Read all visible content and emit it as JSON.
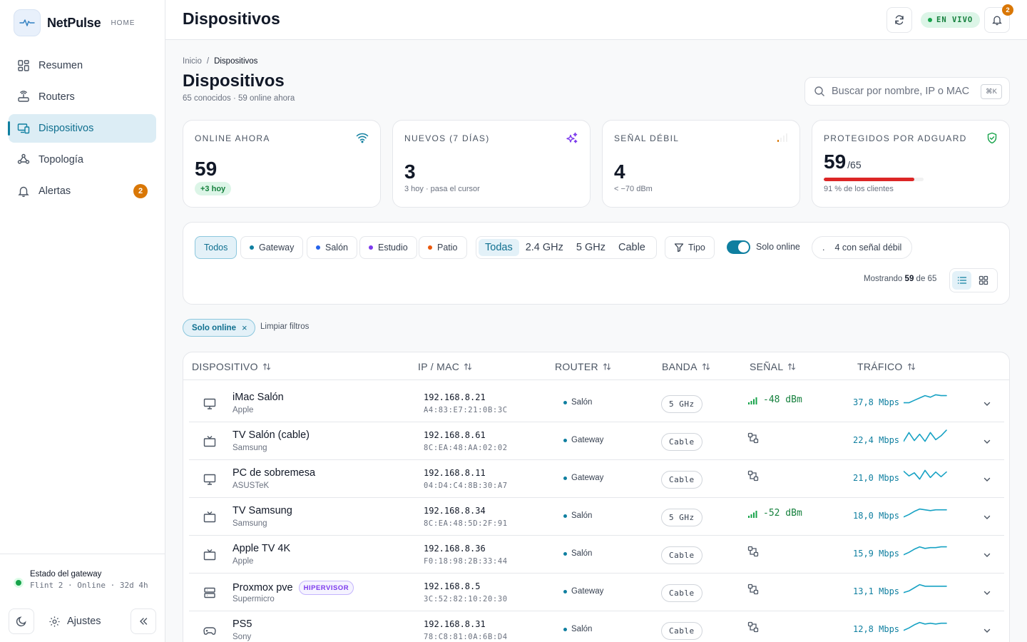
{
  "app": {
    "name": "NetPulse",
    "tag": "HOME"
  },
  "nav": [
    {
      "label": "Resumen",
      "icon": "dashboard-icon"
    },
    {
      "label": "Routers",
      "icon": "router-icon"
    },
    {
      "label": "Dispositivos",
      "icon": "devices-icon",
      "active": true
    },
    {
      "label": "Topología",
      "icon": "topology-icon"
    },
    {
      "label": "Alertas",
      "icon": "bell-icon",
      "badge": "2"
    }
  ],
  "gateway": {
    "title": "Estado del gateway",
    "subtitle": "Flint 2 · Online · 32d 4h"
  },
  "footer": {
    "settings_label": "Ajustes"
  },
  "topbar": {
    "title": "Dispositivos",
    "live_label": "EN VIVO",
    "notif_count": "2"
  },
  "breadcrumb": {
    "home": "Inicio",
    "sep": "/",
    "current": "Dispositivos"
  },
  "page": {
    "title": "Dispositivos",
    "subtitle": "65 conocidos · 59 online ahora"
  },
  "search": {
    "placeholder": "Buscar por nombre, IP o MAC",
    "shortcut": "⌘K"
  },
  "stats": [
    {
      "label": "ONLINE AHORA",
      "value": "59",
      "badge": "+3 hoy",
      "icon": "wifi-icon",
      "color": "#0f7fa0"
    },
    {
      "label": "NUEVOS (7 DÍAS)",
      "value": "3",
      "note": "3 hoy · pasa el cursor",
      "icon": "sparkle-icon",
      "color": "#7c3aed"
    },
    {
      "label": "SEÑAL DÉBIL",
      "value": "4",
      "note": "< −70 dBm",
      "icon": "weak-signal-icon",
      "color": "#d97706"
    },
    {
      "label": "PROTEGIDOS POR ADGUARD",
      "value": "59",
      "value_suffix": "/65",
      "note": "91 % de los clientes",
      "progress": 0.91,
      "icon": "shield-check-icon",
      "color": "#16a34a"
    }
  ],
  "filters": {
    "routers": [
      {
        "label": "Todos",
        "selected": true
      },
      {
        "label": "Gateway",
        "dot": "#0f7fa0"
      },
      {
        "label": "Salón",
        "dot": "#2563eb"
      },
      {
        "label": "Estudio",
        "dot": "#7c3aed"
      },
      {
        "label": "Patio",
        "dot": "#ea580c"
      }
    ],
    "bands": [
      {
        "label": "Todas",
        "selected": true
      },
      {
        "label": "2.4 GHz"
      },
      {
        "label": "5 GHz"
      },
      {
        "label": "Cable"
      }
    ],
    "type_label": "Tipo",
    "online_only_label": "Solo online",
    "online_only": true,
    "weak_label": "4 con señal débil",
    "weak_prefix": ".",
    "showing_prefix": "Mostrando",
    "showing_count": "59",
    "showing_mid": "de",
    "showing_total": "65"
  },
  "active_filters": {
    "chip": "Solo online",
    "clear": "Limpiar filtros"
  },
  "table": {
    "columns": [
      "DISPOSITIVO",
      "IP / MAC",
      "ROUTER",
      "BANDA",
      "SEÑAL",
      "TRÁFICO"
    ],
    "rows": [
      {
        "name": "iMac Salón",
        "vendor": "Apple",
        "kind": "desktop",
        "ip": "192.168.8.21",
        "mac": "A4:83:E7:21:0B:3C",
        "router": "Salón",
        "band": "5 GHz",
        "signal": "-48 dBm",
        "traffic": "37,8 Mbps",
        "trend": [
          4,
          4,
          7,
          10,
          13,
          11,
          14,
          13,
          13
        ]
      },
      {
        "name": "TV Salón (cable)",
        "vendor": "Samsung",
        "kind": "tv",
        "ip": "192.168.8.61",
        "mac": "8C:EA:48:AA:02:02",
        "router": "Gateway",
        "band": "Cable",
        "signal": "",
        "traffic": "22,4 Mbps",
        "trend": [
          3,
          14,
          4,
          12,
          3,
          14,
          5,
          10,
          17
        ]
      },
      {
        "name": "PC de sobremesa",
        "vendor": "ASUSTeK",
        "kind": "desktop",
        "ip": "192.168.8.11",
        "mac": "04:D4:C4:8B:30:A7",
        "router": "Gateway",
        "band": "Cable",
        "signal": "",
        "traffic": "21,0 Mbps",
        "trend": [
          13,
          7,
          11,
          3,
          14,
          5,
          12,
          6,
          12
        ]
      },
      {
        "name": "TV Samsung",
        "vendor": "Samsung",
        "kind": "tv",
        "ip": "192.168.8.34",
        "mac": "8C:EA:48:5D:2F:91",
        "router": "Salón",
        "band": "5 GHz",
        "signal": "-52 dBm",
        "traffic": "18,0 Mbps",
        "trend": [
          3,
          6,
          10,
          13,
          12,
          11,
          12,
          12,
          12
        ]
      },
      {
        "name": "Apple TV 4K",
        "vendor": "Apple",
        "kind": "tv",
        "ip": "192.168.8.36",
        "mac": "F0:18:98:2B:33:44",
        "router": "Salón",
        "band": "Cable",
        "signal": "",
        "traffic": "15,9 Mbps",
        "trend": [
          3,
          6,
          10,
          13,
          11,
          12,
          12,
          13,
          13
        ]
      },
      {
        "name": "Proxmox pve",
        "vendor": "Supermicro",
        "kind": "server",
        "tag": "HIPERVISOR",
        "ip": "192.168.8.5",
        "mac": "3C:52:82:10:20:30",
        "router": "Gateway",
        "band": "Cable",
        "signal": "",
        "traffic": "13,1 Mbps",
        "trend": [
          3,
          5,
          9,
          13,
          11,
          11,
          11,
          11,
          11
        ]
      },
      {
        "name": "PS5",
        "vendor": "Sony",
        "kind": "gamepad",
        "ip": "192.168.8.31",
        "mac": "78:C8:81:0A:6B:D4",
        "router": "Salón",
        "band": "Cable",
        "signal": "",
        "traffic": "12,8 Mbps",
        "trend": [
          3,
          6,
          10,
          13,
          11,
          12,
          11,
          12,
          12
        ]
      }
    ]
  }
}
